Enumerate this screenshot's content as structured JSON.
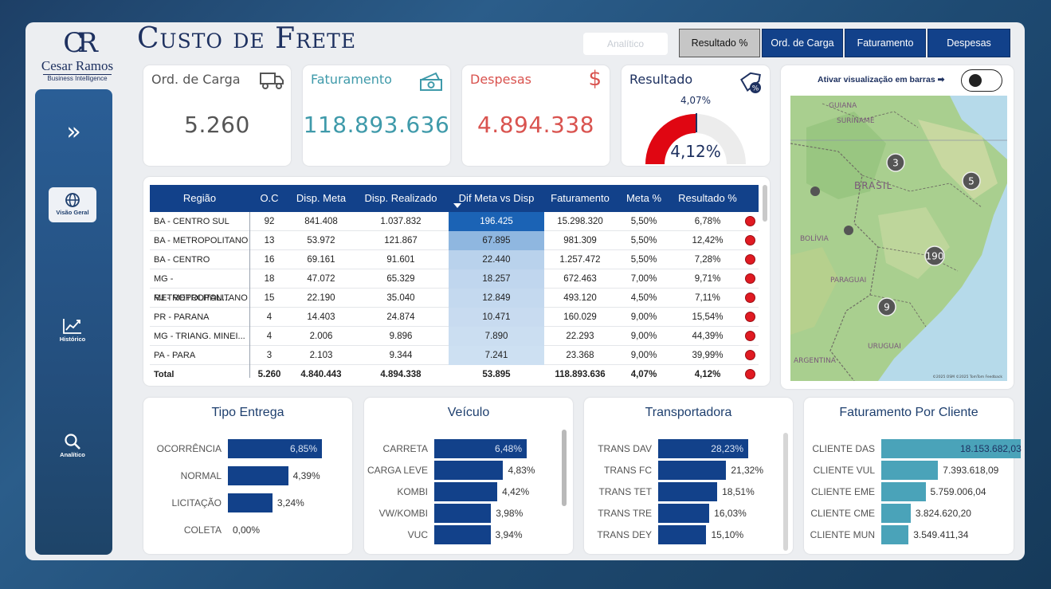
{
  "brand": {
    "monogram": "CR",
    "name": "Cesar Ramos",
    "subtitle": "Business Intelligence"
  },
  "sidebar": {
    "expand_icon": "chevron-double-right-icon",
    "items": [
      {
        "label": "Visão Geral",
        "icon": "globe-icon",
        "active": true
      },
      {
        "label": "Histórico",
        "icon": "trend-chart-icon",
        "active": false
      },
      {
        "label": "Analítico",
        "icon": "search-icon",
        "active": false
      }
    ]
  },
  "header": {
    "title": "Custo de Frete",
    "analitico_label": "Analítico",
    "tabs": [
      "Resultado %",
      "Ord. de Carga",
      "Faturamento",
      "Despesas"
    ],
    "selected_tab": "Resultado %"
  },
  "kpis": {
    "ord_carga": {
      "label": "Ord. de Carga",
      "value": "5.260",
      "icon": "truck-icon"
    },
    "faturamento": {
      "label": "Faturamento",
      "value": "118.893.636",
      "icon": "money-icon"
    },
    "despesas": {
      "label": "Despesas",
      "value": "4.894.338",
      "icon": "dollar-icon"
    },
    "resultado": {
      "label": "Resultado",
      "meta": "4,07%",
      "value": "4,12%",
      "fraction": 0.5,
      "icon": "percent-tag-icon"
    }
  },
  "colors": {
    "navy": "#12418a",
    "teal": "#3f9aaa",
    "red": "#d9534f",
    "gauge_red": "#e00612",
    "cliente_bar": "#4aa3b9"
  },
  "table": {
    "columns": [
      "Região",
      "O.C",
      "Disp. Meta",
      "Disp. Realizado",
      "Dif Meta vs Disp",
      "Faturamento",
      "Meta %",
      "Resultado %"
    ],
    "rows": [
      {
        "regiao": "BA - CENTRO SUL",
        "oc": "92",
        "meta": "841.408",
        "real": "1.037.832",
        "dif": "196.425",
        "fat": "15.298.320",
        "meta_pct": "5,50%",
        "res_pct": "6,78%"
      },
      {
        "regiao": "BA - METROPOLITANO",
        "oc": "13",
        "meta": "53.972",
        "real": "121.867",
        "dif": "67.895",
        "fat": "981.309",
        "meta_pct": "5,50%",
        "res_pct": "12,42%"
      },
      {
        "regiao": "BA - CENTRO",
        "oc": "16",
        "meta": "69.161",
        "real": "91.601",
        "dif": "22.440",
        "fat": "1.257.472",
        "meta_pct": "5,50%",
        "res_pct": "7,28%"
      },
      {
        "regiao": "MG - METROPOLITAN...",
        "oc": "18",
        "meta": "47.072",
        "real": "65.329",
        "dif": "18.257",
        "fat": "672.463",
        "meta_pct": "7,00%",
        "res_pct": "9,71%"
      },
      {
        "regiao": "RJ - METROPOLITANO",
        "oc": "15",
        "meta": "22.190",
        "real": "35.040",
        "dif": "12.849",
        "fat": "493.120",
        "meta_pct": "4,50%",
        "res_pct": "7,11%"
      },
      {
        "regiao": "PR - PARANA",
        "oc": "4",
        "meta": "14.403",
        "real": "24.874",
        "dif": "10.471",
        "fat": "160.029",
        "meta_pct": "9,00%",
        "res_pct": "15,54%"
      },
      {
        "regiao": "MG - TRIANG. MINEI...",
        "oc": "4",
        "meta": "2.006",
        "real": "9.896",
        "dif": "7.890",
        "fat": "22.293",
        "meta_pct": "9,00%",
        "res_pct": "44,39%"
      },
      {
        "regiao": "PA - PARA",
        "oc": "3",
        "meta": "2.103",
        "real": "9.344",
        "dif": "7.241",
        "fat": "23.368",
        "meta_pct": "9,00%",
        "res_pct": "39,99%"
      }
    ],
    "total": {
      "regiao": "Total",
      "oc": "5.260",
      "meta": "4.840.443",
      "real": "4.894.338",
      "dif": "53.895",
      "fat": "118.893.636",
      "meta_pct": "4,07%",
      "res_pct": "4,12%"
    }
  },
  "map": {
    "toggle_label": "Ativar visualização em barras ➡",
    "country_labels": [
      "GUIANA",
      "SURINAME",
      "BRASIL",
      "BOLÍVIA",
      "PARAGUAI",
      "URUGUAI",
      "ARGENTINA"
    ],
    "clusters": [
      "3",
      "5",
      "190",
      "9"
    ],
    "attribution": "©2025 OSM ©2025 TomTom Feedback"
  },
  "charts": [
    {
      "title": "Tipo Entrega",
      "categories": [
        "OCORRÊNCIA",
        "NORMAL",
        "LICITAÇÃO",
        "COLETA"
      ],
      "values": [
        6.85,
        4.39,
        3.24,
        0.0
      ],
      "labels": [
        "6,85%",
        "4,39%",
        "3,24%",
        "0,00%"
      ],
      "max": 6.85
    },
    {
      "title": "Veículo",
      "categories": [
        "CARRETA",
        "CARGA LEVE",
        "KOMBI",
        "VW/KOMBI",
        "VUC"
      ],
      "values": [
        6.48,
        4.83,
        4.42,
        3.98,
        3.94
      ],
      "labels": [
        "6,48%",
        "4,83%",
        "4,42%",
        "3,98%",
        "3,94%"
      ],
      "max": 6.48
    },
    {
      "title": "Transportadora",
      "categories": [
        "TRANS DAV",
        "TRANS FC",
        "TRANS TET",
        "TRANS TRE",
        "TRANS DEY"
      ],
      "values": [
        28.23,
        21.32,
        18.51,
        16.03,
        15.1
      ],
      "labels": [
        "28,23%",
        "21,32%",
        "18,51%",
        "16,03%",
        "15,10%"
      ],
      "max": 28.23
    },
    {
      "title": "Faturamento Por Cliente",
      "categories": [
        "CLIENTE DAS",
        "CLIENTE VUL",
        "CLIENTE EME",
        "CLIENTE CME",
        "CLIENTE MUN"
      ],
      "values": [
        18153682.03,
        7393618.09,
        5759006.04,
        3824620.2,
        3549411.34
      ],
      "labels": [
        "18.153.682,03",
        "7.393.618,09",
        "5.759.006,04",
        "3.824.620,20",
        "3.549.411,34"
      ],
      "max": 18153682.03
    }
  ]
}
